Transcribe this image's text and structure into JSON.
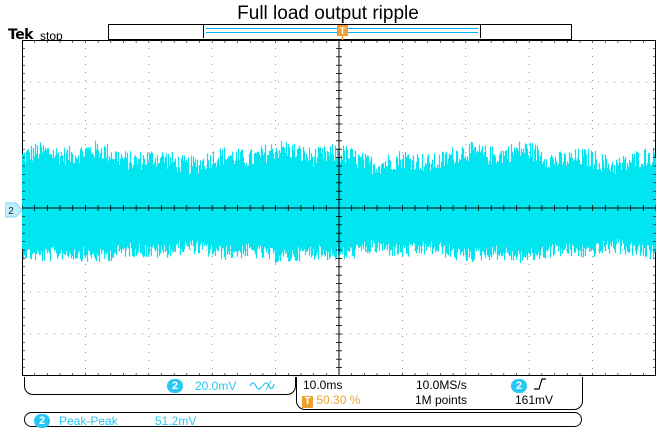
{
  "title": "Full load output ripple",
  "brand": "Tek",
  "acq_state": "stop",
  "trigger_marker_label": "T",
  "channel": {
    "id": "2",
    "color": "#27c6f4",
    "scale": "20.0mV",
    "coupling_icon": "ac-bandwidth-icon"
  },
  "timebase": {
    "scale": "10.0ms",
    "sample_rate": "10.0MS/s",
    "record_length": "1M points",
    "trigger_position_label": "T",
    "trigger_position": "50.30 %"
  },
  "trigger": {
    "source": "2",
    "slope_icon": "rising-edge-icon",
    "level": "161mV"
  },
  "measurement": {
    "source": "2",
    "name": "Peak-Peak",
    "value": "51.2mV"
  },
  "chart_data": {
    "type": "line",
    "trace_color": "#00e5f0",
    "x_divisions": 10,
    "y_divisions": 8,
    "volts_per_div_mV": 20.0,
    "time_per_div_ms": 10.0,
    "peak_to_peak_mV": 51.2,
    "trace_min_div": -1.2,
    "trace_max_div": 1.35,
    "grid": true
  }
}
